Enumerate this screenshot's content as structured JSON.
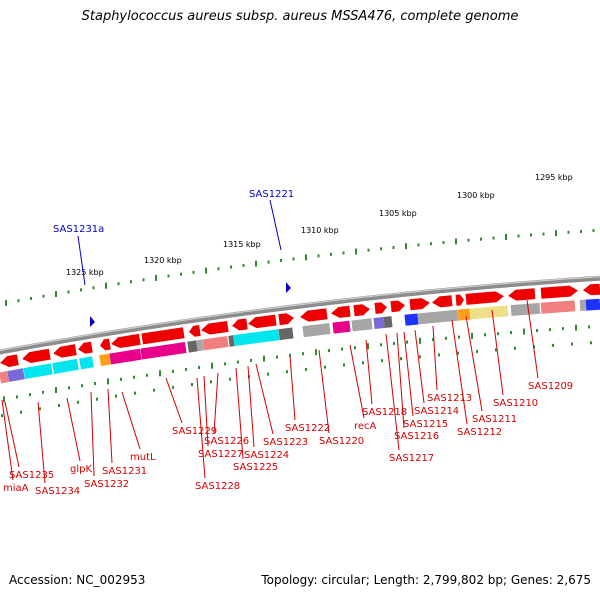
{
  "title": "Staphylococcus aureus subsp. aureus MSSA476, complete genome",
  "footer": {
    "accession": "Accession: NC_002953",
    "topology": "Topology: circular; Length: 2,799,802 bp; Genes: 2,675"
  },
  "scale_labels": [
    "1325 kbp",
    "1320 kbp",
    "1315 kbp",
    "1310 kbp",
    "1305 kbp",
    "1300 kbp",
    "1295 kbp"
  ],
  "blue_labels": [
    "SAS1231a",
    "SAS1221"
  ],
  "gene_labels": [
    "SAS1235",
    "miaA",
    "SAS1234",
    "glpK",
    "SAS1232",
    "SAS1231",
    "mutL",
    "SAS1229",
    "SAS1228",
    "SAS1227",
    "SAS1226",
    "SAS1225",
    "SAS1224",
    "SAS1223",
    "SAS1222",
    "SAS1220",
    "recA",
    "SAS1218",
    "SAS1217",
    "SAS1216",
    "SAS1215",
    "SAS1214",
    "SAS1213",
    "SAS1212",
    "SAS1211",
    "SAS1210",
    "SAS1209"
  ],
  "colors": {
    "label_red": "#d40000",
    "label_blue": "#0000c8",
    "backbone": "#8c8c8c",
    "tick_green": "#2e8b2e",
    "gene_red": "#ee0000",
    "gene_cyan": "#00e5ee",
    "gene_magenta": "#e8008a",
    "gene_gray": "#a6a6a6",
    "gene_salmon": "#f08080",
    "gene_orange": "#ff9f1a",
    "gene_yellow": "#eee08a",
    "gene_blue": "#1e32ff",
    "gene_purple": "#7a6ad8",
    "gene_darkgray": "#666666"
  }
}
